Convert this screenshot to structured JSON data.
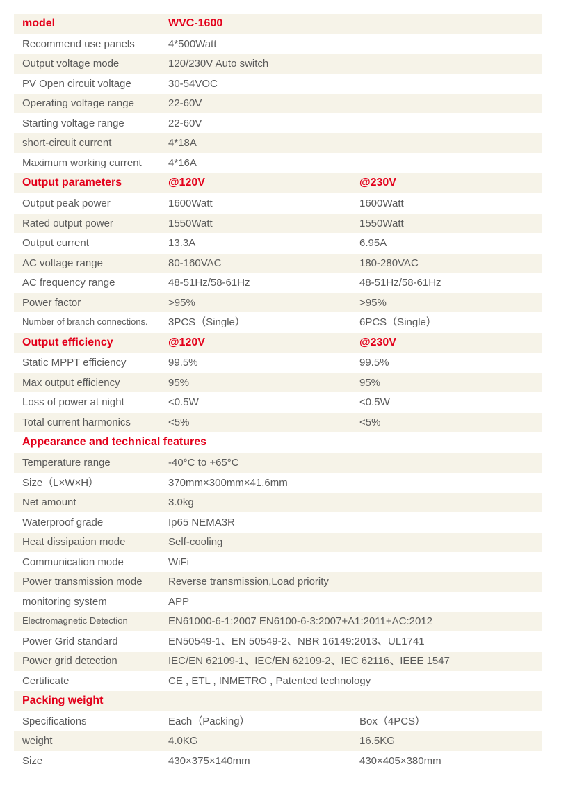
{
  "colors": {
    "accent": "#e3001b",
    "band_odd": "#f6f3e8",
    "band_even": "#ffffff",
    "text": "#5a5a5a"
  },
  "rows": [
    {
      "cls": "odd",
      "header": true,
      "c0": "model",
      "c1": "WVC-1600"
    },
    {
      "cls": "even",
      "c0": "Recommend use panels",
      "c1": "4*500Watt"
    },
    {
      "cls": "odd",
      "c0": "Output voltage mode",
      "c1": "120/230V Auto switch"
    },
    {
      "cls": "even",
      "c0": "PV Open circuit voltage",
      "c1": "30-54VOC"
    },
    {
      "cls": "odd",
      "c0": "Operating voltage range",
      "c1": "22-60V"
    },
    {
      "cls": "even",
      "c0": "Starting voltage range",
      "c1": "22-60V"
    },
    {
      "cls": "odd",
      "c0": "short-circuit current",
      "c1": "4*18A"
    },
    {
      "cls": "even",
      "c0": "Maximum working current",
      "c1": "4*16A"
    },
    {
      "cls": "odd",
      "header": true,
      "c0": "Output parameters",
      "c1": "@120V",
      "c2": "@230V"
    },
    {
      "cls": "even",
      "c0": "Output peak power",
      "c1": "1600Watt",
      "c2": "1600Watt"
    },
    {
      "cls": "odd",
      "c0": "Rated output power",
      "c1": "1550Watt",
      "c2": "1550Watt"
    },
    {
      "cls": "even",
      "c0": "Output current",
      "c1": "13.3A",
      "c2": "6.95A"
    },
    {
      "cls": "odd",
      "c0": "AC voltage range",
      "c1": "80-160VAC",
      "c2": "180-280VAC"
    },
    {
      "cls": "even",
      "c0": "AC frequency range",
      "c1": "48-51Hz/58-61Hz",
      "c2": "48-51Hz/58-61Hz"
    },
    {
      "cls": "odd",
      "c0": "Power factor",
      "c1": ">95%",
      "c2": ">95%"
    },
    {
      "cls": "even",
      "small": true,
      "c0": "Number of branch connections.",
      "c1": "3PCS（Single）",
      "c2": "6PCS（Single）"
    },
    {
      "cls": "odd",
      "header": true,
      "c0": "Output efficiency",
      "c1": "@120V",
      "c2": "@230V"
    },
    {
      "cls": "even",
      "c0": "Static MPPT efficiency",
      "c1": "99.5%",
      "c2": "99.5%"
    },
    {
      "cls": "odd",
      "c0": "Max output efficiency",
      "c1": "95%",
      "c2": "95%"
    },
    {
      "cls": "even",
      "c0": "Loss of power at night",
      "c1": "<0.5W",
      "c2": "<0.5W"
    },
    {
      "cls": "odd",
      "c0": "Total current harmonics",
      "c1": "<5%",
      "c2": "<5%"
    },
    {
      "cls": "even",
      "header": true,
      "c0": "Appearance and technical features"
    },
    {
      "cls": "odd",
      "c0": "Temperature range",
      "c1": "-40°C to +65°C"
    },
    {
      "cls": "even",
      "c0": "Size（L×W×H）",
      "c1": "370mm×300mm×41.6mm"
    },
    {
      "cls": "odd",
      "c0": "Net amount",
      "c1": "3.0kg"
    },
    {
      "cls": "even",
      "c0": "Waterproof grade",
      "c1": "Ip65 NEMA3R"
    },
    {
      "cls": "odd",
      "c0": "Heat dissipation mode",
      "c1": "Self-cooling"
    },
    {
      "cls": "even",
      "c0": "Communication mode",
      "c1": "WiFi"
    },
    {
      "cls": "odd",
      "c0": "Power transmission mode",
      "c1": "Reverse transmission,Load priority"
    },
    {
      "cls": "even",
      "c0": "monitoring system",
      "c1": "APP"
    },
    {
      "cls": "odd",
      "small": true,
      "c0": "Electromagnetic Detection",
      "c1": "EN61000-6-1:2007 EN6100-6-3:2007+A1:2011+AC:2012"
    },
    {
      "cls": "even",
      "c0": "Power Grid standard",
      "c1": "EN50549-1、EN 50549-2、NBR 16149:2013、UL1741"
    },
    {
      "cls": "odd",
      "c0": "Power grid detection",
      "c1": "IEC/EN 62109-1、IEC/EN 62109-2、IEC 62116、IEEE 1547"
    },
    {
      "cls": "even",
      "c0": "Certificate",
      "c1": "CE , ETL , INMETRO , Patented technology"
    },
    {
      "cls": "odd",
      "header": true,
      "c0": "Packing weight"
    },
    {
      "cls": "even",
      "c0": "Specifications",
      "c1": "Each（Packing）",
      "c2": "Box（4PCS）"
    },
    {
      "cls": "odd",
      "c0": "weight",
      "c1": "4.0KG",
      "c2": "16.5KG"
    },
    {
      "cls": "even",
      "c0": "Size",
      "c1": "430×375×140mm",
      "c2": "430×405×380mm"
    }
  ]
}
